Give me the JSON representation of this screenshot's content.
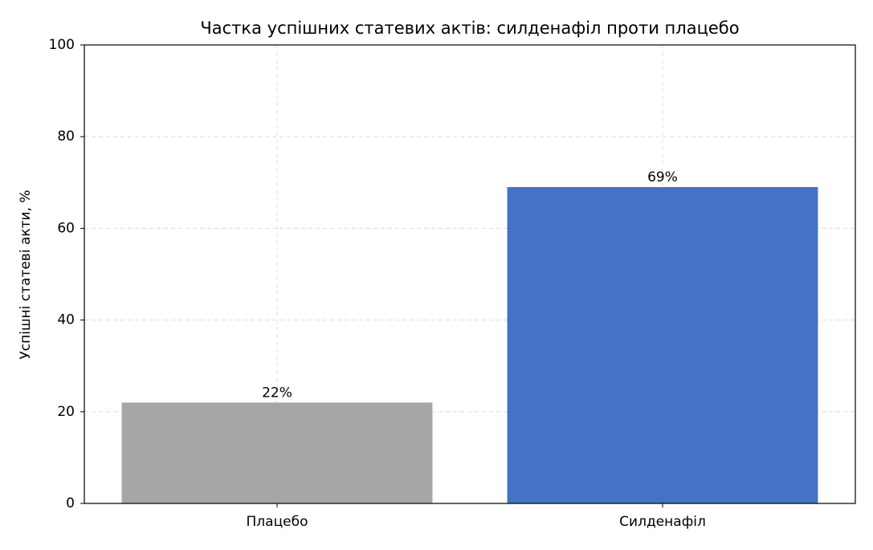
{
  "chart_data": {
    "type": "bar",
    "title": "Частка успішних статевих актів: силденафіл проти плацебо",
    "ylabel": "Успішні статеві акти, %",
    "categories": [
      "Плацебо",
      "Силденафіл"
    ],
    "values": [
      22,
      69
    ],
    "value_labels": [
      "22%",
      "69%"
    ],
    "colors": [
      "#a6a6a6",
      "#4472c4"
    ],
    "ylim": [
      0,
      100
    ],
    "yticks": [
      0,
      20,
      40,
      60,
      80,
      100
    ],
    "grid": true
  }
}
